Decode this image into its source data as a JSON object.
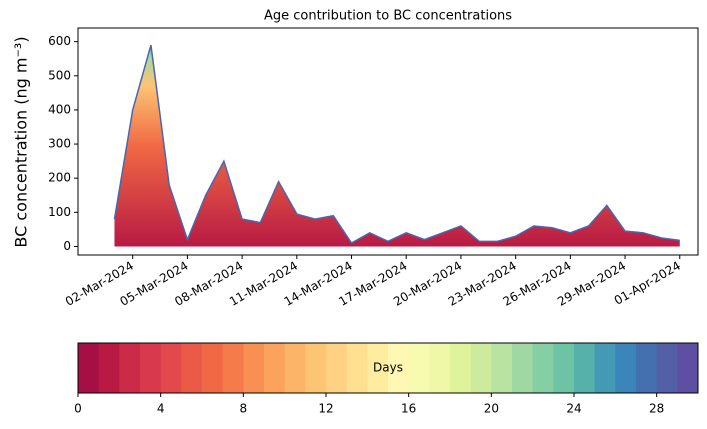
{
  "chart_data": [
    {
      "type": "area",
      "title": "Age contribution to BC concentrations",
      "y_label": "BC concentration (ng m⁻³)",
      "x": [
        "2024-03-01",
        "2024-03-02",
        "2024-03-03",
        "2024-03-04",
        "2024-03-05",
        "2024-03-06",
        "2024-03-07",
        "2024-03-08",
        "2024-03-09",
        "2024-03-10",
        "2024-03-11",
        "2024-03-12",
        "2024-03-13",
        "2024-03-14",
        "2024-03-15",
        "2024-03-16",
        "2024-03-17",
        "2024-03-18",
        "2024-03-19",
        "2024-03-20",
        "2024-03-21",
        "2024-03-22",
        "2024-03-23",
        "2024-03-24",
        "2024-03-25",
        "2024-03-26",
        "2024-03-27",
        "2024-03-28",
        "2024-03-29",
        "2024-03-30",
        "2024-03-31",
        "2024-04-01"
      ],
      "series": [
        {
          "color": "#4a66ad",
          "values": [
            80,
            400,
            590,
            180,
            20,
            150,
            250,
            80,
            70,
            190,
            95,
            80,
            90,
            10,
            40,
            15,
            40,
            20,
            40,
            60,
            15,
            15,
            30,
            60,
            55,
            40,
            60,
            120,
            45,
            40,
            25,
            18
          ]
        }
      ],
      "xlim": [
        "2024-02-28",
        "2024-04-02"
      ],
      "xticks": [
        {
          "value": "2024-03-02",
          "label": "02-Mar-2024"
        },
        {
          "value": "2024-03-05",
          "label": "05-Mar-2024"
        },
        {
          "value": "2024-03-08",
          "label": "08-Mar-2024"
        },
        {
          "value": "2024-03-11",
          "label": "11-Mar-2024"
        },
        {
          "value": "2024-03-14",
          "label": "14-Mar-2024"
        },
        {
          "value": "2024-03-17",
          "label": "17-Mar-2024"
        },
        {
          "value": "2024-03-20",
          "label": "20-Mar-2024"
        },
        {
          "value": "2024-03-23",
          "label": "23-Mar-2024"
        },
        {
          "value": "2024-03-26",
          "label": "26-Mar-2024"
        },
        {
          "value": "2024-03-29",
          "label": "29-Mar-2024"
        },
        {
          "value": "2024-04-01",
          "label": "01-Apr-2024"
        }
      ],
      "ylim": [
        -25,
        640
      ],
      "yticks": [
        0,
        100,
        200,
        300,
        400,
        500,
        600
      ]
    },
    {
      "type": "colorbar",
      "label": "Days",
      "xlim": [
        0,
        30
      ],
      "xticks": [
        0,
        4,
        8,
        12,
        16,
        20,
        24,
        28
      ],
      "colors": [
        "#a50f43",
        "#b81a44",
        "#cb2b47",
        "#d8394c",
        "#e1494c",
        "#ea5a47",
        "#f06944",
        "#f57b4b",
        "#f88f53",
        "#fba25c",
        "#fcb468",
        "#fdc474",
        "#fed282",
        "#fee090",
        "#feec9f",
        "#fff7b2",
        "#f7fbaf",
        "#eef8a6",
        "#e1f39a",
        "#cdeb9d",
        "#b9e3a1",
        "#a0d8a3",
        "#86cea4",
        "#6cc4a5",
        "#56b1ab",
        "#4499b4",
        "#3a85ba",
        "#4570b0",
        "#5360a8",
        "#5e4fa2"
      ]
    }
  ]
}
